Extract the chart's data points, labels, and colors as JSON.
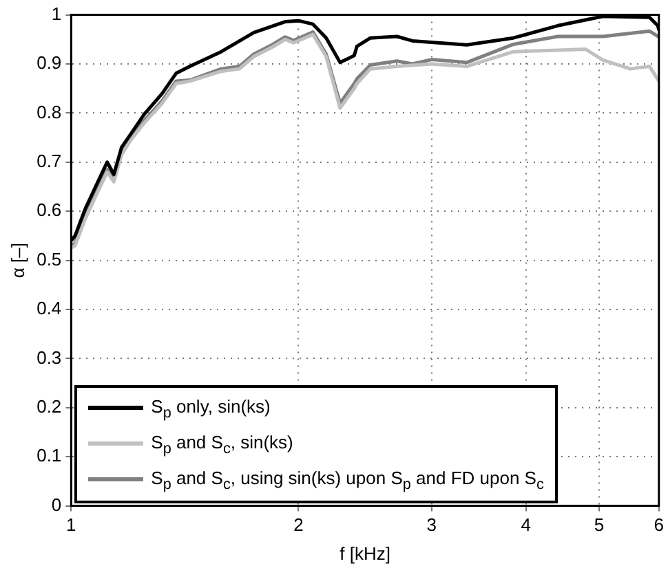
{
  "chart_data": {
    "type": "line",
    "xlabel": "f [kHz]",
    "ylabel": "α [–]",
    "log": "x",
    "xlim": [
      1,
      6
    ],
    "xticks": [
      1,
      2,
      3,
      4,
      5,
      6
    ],
    "ylim": [
      0,
      1
    ],
    "yticks": [
      0,
      0.1,
      0.2,
      0.3,
      0.4,
      0.5,
      0.6,
      0.7,
      0.8,
      0.9,
      1
    ],
    "grid": true,
    "legend": "bottom left",
    "marker": "none",
    "line_style": "solid",
    "series": [
      {
        "name": "S$_{p}$ only, sin(ks)",
        "color": "#000000",
        "x": [
          1.0,
          1.012,
          1.044,
          1.081,
          1.116,
          1.139,
          1.166,
          1.199,
          1.25,
          1.32,
          1.377,
          1.436,
          1.58,
          1.745,
          1.92,
          2.0,
          2.09,
          2.176,
          2.27,
          2.37,
          2.39,
          2.49,
          2.7,
          2.83,
          3.34,
          3.85,
          4.41,
          5.06,
          5.83,
          5.98,
          6.0
        ],
        "values": [
          0.54,
          0.55,
          0.605,
          0.655,
          0.7,
          0.675,
          0.73,
          0.757,
          0.798,
          0.84,
          0.881,
          0.895,
          0.925,
          0.964,
          0.986,
          0.988,
          0.981,
          0.953,
          0.903,
          0.917,
          0.936,
          0.953,
          0.956,
          0.947,
          0.939,
          0.953,
          0.978,
          0.997,
          0.995,
          0.978,
          0.97
        ]
      },
      {
        "name": "S$_{p}$ and S$_{c}$, sin(ks)",
        "color": "#c0c0c0",
        "x": [
          1.0,
          1.012,
          1.044,
          1.081,
          1.116,
          1.139,
          1.166,
          1.199,
          1.25,
          1.32,
          1.377,
          1.436,
          1.58,
          1.67,
          1.745,
          1.85,
          1.92,
          1.97,
          2.09,
          2.176,
          2.27,
          2.37,
          2.39,
          2.49,
          2.7,
          3.0,
          3.34,
          3.85,
          4.41,
          4.8,
          5.06,
          5.5,
          5.83,
          6.0
        ],
        "values": [
          0.525,
          0.53,
          0.585,
          0.635,
          0.68,
          0.66,
          0.715,
          0.745,
          0.78,
          0.82,
          0.86,
          0.865,
          0.885,
          0.89,
          0.915,
          0.935,
          0.95,
          0.943,
          0.96,
          0.915,
          0.81,
          0.85,
          0.86,
          0.89,
          0.895,
          0.9,
          0.895,
          0.925,
          0.928,
          0.93,
          0.908,
          0.89,
          0.895,
          0.865
        ]
      },
      {
        "name": "S$_{p}$ and S$_{c}$, using sin(ks) upon S$_{p}$ and FD upon S$_{c}$",
        "color": "#808080",
        "x": [
          1.0,
          1.012,
          1.044,
          1.081,
          1.116,
          1.139,
          1.166,
          1.199,
          1.25,
          1.32,
          1.377,
          1.436,
          1.58,
          1.67,
          1.745,
          1.85,
          1.92,
          1.97,
          2.09,
          2.176,
          2.27,
          2.37,
          2.39,
          2.49,
          2.7,
          2.83,
          3.0,
          3.34,
          3.85,
          4.41,
          5.06,
          5.83,
          6.0
        ],
        "values": [
          0.53,
          0.535,
          0.59,
          0.64,
          0.685,
          0.665,
          0.72,
          0.75,
          0.785,
          0.825,
          0.865,
          0.867,
          0.89,
          0.895,
          0.92,
          0.94,
          0.955,
          0.948,
          0.965,
          0.92,
          0.82,
          0.86,
          0.87,
          0.898,
          0.906,
          0.9,
          0.909,
          0.903,
          0.94,
          0.956,
          0.956,
          0.967,
          0.955
        ]
      }
    ]
  }
}
